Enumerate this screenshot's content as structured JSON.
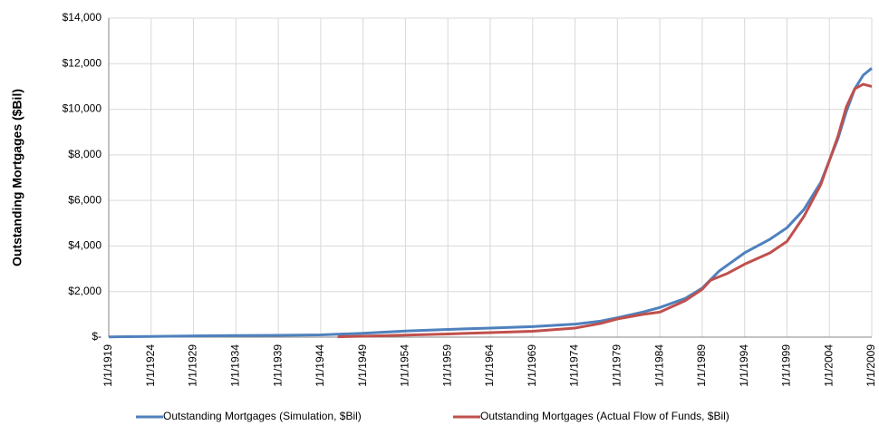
{
  "chart_data": {
    "type": "line",
    "y_label": "Outstanding Mortgages ($Bil)",
    "xlim": [
      1919,
      2009
    ],
    "xticks": [
      {
        "value": 1919,
        "label": "1/1/1919"
      },
      {
        "value": 1924,
        "label": "1/1/1924"
      },
      {
        "value": 1929,
        "label": "1/1/1929"
      },
      {
        "value": 1934,
        "label": "1/1/1934"
      },
      {
        "value": 1939,
        "label": "1/1/1939"
      },
      {
        "value": 1944,
        "label": "1/1/1944"
      },
      {
        "value": 1949,
        "label": "1/1/1949"
      },
      {
        "value": 1954,
        "label": "1/1/1954"
      },
      {
        "value": 1959,
        "label": "1/1/1959"
      },
      {
        "value": 1964,
        "label": "1/1/1964"
      },
      {
        "value": 1969,
        "label": "1/1/1969"
      },
      {
        "value": 1974,
        "label": "1/1/1974"
      },
      {
        "value": 1979,
        "label": "1/1/1979"
      },
      {
        "value": 1984,
        "label": "1/1/1984"
      },
      {
        "value": 1989,
        "label": "1/1/1989"
      },
      {
        "value": 1994,
        "label": "1/1/1994"
      },
      {
        "value": 1999,
        "label": "1/1/1999"
      },
      {
        "value": 2004,
        "label": "1/1/2004"
      },
      {
        "value": 2009,
        "label": "1/1/2009"
      }
    ],
    "ylim": [
      0,
      14000
    ],
    "yticks": [
      {
        "value": 0,
        "label": "$-"
      },
      {
        "value": 2000,
        "label": "$2,000"
      },
      {
        "value": 4000,
        "label": "$4,000"
      },
      {
        "value": 6000,
        "label": "$6,000"
      },
      {
        "value": 8000,
        "label": "$8,000"
      },
      {
        "value": 10000,
        "label": "$10,000"
      },
      {
        "value": 12000,
        "label": "$12,000"
      },
      {
        "value": 14000,
        "label": "$14,000"
      }
    ],
    "grid": true,
    "legend": "bottom",
    "series": [
      {
        "name": "Outstanding Mortgages (Simulation, $Bil)",
        "color": "#4f81bd",
        "x": [
          1919,
          1924,
          1929,
          1934,
          1939,
          1944,
          1949,
          1954,
          1959,
          1964,
          1969,
          1974,
          1977,
          1979,
          1982,
          1984,
          1987,
          1989,
          1991,
          1994,
          1997,
          1999,
          2001,
          2003,
          2005,
          2006,
          2007,
          2008,
          2009
        ],
        "values": [
          10,
          30,
          55,
          70,
          80,
          100,
          170,
          270,
          340,
          400,
          460,
          570,
          700,
          850,
          1100,
          1300,
          1700,
          2150,
          2900,
          3700,
          4300,
          4800,
          5600,
          6800,
          8700,
          9900,
          10900,
          11500,
          11800
        ]
      },
      {
        "name": "Outstanding Mortgages (Actual Flow of Funds, $Bil)",
        "color": "#c0504d",
        "x": [
          1946,
          1949,
          1954,
          1959,
          1964,
          1969,
          1974,
          1977,
          1979,
          1982,
          1984,
          1987,
          1989,
          1990,
          1992,
          1994,
          1997,
          1999,
          2001,
          2003,
          2005,
          2006,
          2007,
          2008,
          2009
        ],
        "values": [
          15,
          40,
          90,
          140,
          200,
          260,
          400,
          600,
          800,
          1000,
          1100,
          1600,
          2100,
          2500,
          2800,
          3200,
          3700,
          4200,
          5300,
          6700,
          8800,
          10100,
          10900,
          11100,
          11000
        ]
      }
    ]
  }
}
